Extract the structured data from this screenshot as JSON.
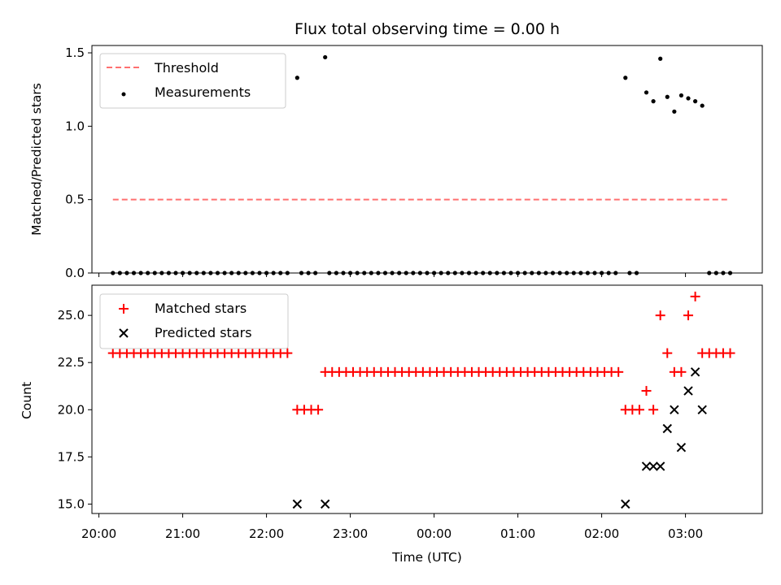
{
  "chart_data": [
    {
      "type": "scatter",
      "title": "Flux total observing time = 0.00 h",
      "xlabel": "",
      "ylabel": "Matched/Predicted stars",
      "ylim": [
        0,
        1.55
      ],
      "yticks": [
        0.0,
        0.5,
        1.0,
        1.5
      ],
      "ytick_labels": [
        "0.0",
        "0.5",
        "1.0",
        "1.5"
      ],
      "xlim": [
        "19:55",
        "03:55"
      ],
      "x_unit": "time (UTC)",
      "grid": false,
      "legend_position": "upper-left",
      "threshold": {
        "name": "Threshold",
        "value": 0.5,
        "x_start": "20:10",
        "x_end": "03:32",
        "color": "#ff7070",
        "style": "dashed"
      },
      "series": [
        {
          "name": "Measurements",
          "color": "#000000",
          "marker": "dot",
          "points": [
            [
              "20:10",
              0
            ],
            [
              "20:15",
              0
            ],
            [
              "20:20",
              0
            ],
            [
              "20:25",
              0
            ],
            [
              "20:30",
              0
            ],
            [
              "20:35",
              0
            ],
            [
              "20:40",
              0
            ],
            [
              "20:45",
              0
            ],
            [
              "20:50",
              0
            ],
            [
              "20:55",
              0
            ],
            [
              "21:00",
              0
            ],
            [
              "21:05",
              0
            ],
            [
              "21:10",
              0
            ],
            [
              "21:15",
              0
            ],
            [
              "21:20",
              0
            ],
            [
              "21:25",
              0
            ],
            [
              "21:30",
              0
            ],
            [
              "21:35",
              0
            ],
            [
              "21:40",
              0
            ],
            [
              "21:45",
              0
            ],
            [
              "21:50",
              0
            ],
            [
              "21:55",
              0
            ],
            [
              "22:00",
              0
            ],
            [
              "22:05",
              0
            ],
            [
              "22:10",
              0
            ],
            [
              "22:15",
              0
            ],
            [
              "22:22",
              1.33
            ],
            [
              "22:25",
              0
            ],
            [
              "22:30",
              0
            ],
            [
              "22:35",
              0
            ],
            [
              "22:42",
              1.47
            ],
            [
              "22:45",
              0
            ],
            [
              "22:50",
              0
            ],
            [
              "22:55",
              0
            ],
            [
              "23:00",
              0
            ],
            [
              "23:05",
              0
            ],
            [
              "23:10",
              0
            ],
            [
              "23:15",
              0
            ],
            [
              "23:20",
              0
            ],
            [
              "23:25",
              0
            ],
            [
              "23:30",
              0
            ],
            [
              "23:35",
              0
            ],
            [
              "23:40",
              0
            ],
            [
              "23:45",
              0
            ],
            [
              "23:50",
              0
            ],
            [
              "23:55",
              0
            ],
            [
              "00:00",
              0
            ],
            [
              "00:05",
              0
            ],
            [
              "00:10",
              0
            ],
            [
              "00:15",
              0
            ],
            [
              "00:20",
              0
            ],
            [
              "00:25",
              0
            ],
            [
              "00:30",
              0
            ],
            [
              "00:35",
              0
            ],
            [
              "00:40",
              0
            ],
            [
              "00:45",
              0
            ],
            [
              "00:50",
              0
            ],
            [
              "00:55",
              0
            ],
            [
              "01:00",
              0
            ],
            [
              "01:05",
              0
            ],
            [
              "01:10",
              0
            ],
            [
              "01:15",
              0
            ],
            [
              "01:20",
              0
            ],
            [
              "01:25",
              0
            ],
            [
              "01:30",
              0
            ],
            [
              "01:35",
              0
            ],
            [
              "01:40",
              0
            ],
            [
              "01:45",
              0
            ],
            [
              "01:50",
              0
            ],
            [
              "01:55",
              0
            ],
            [
              "02:00",
              0
            ],
            [
              "02:05",
              0
            ],
            [
              "02:10",
              0
            ],
            [
              "02:17",
              1.33
            ],
            [
              "02:20",
              0
            ],
            [
              "02:25",
              0
            ],
            [
              "02:32",
              1.23
            ],
            [
              "02:37",
              1.17
            ],
            [
              "02:42",
              1.46
            ],
            [
              "02:47",
              1.2
            ],
            [
              "02:52",
              1.1
            ],
            [
              "02:57",
              1.21
            ],
            [
              "03:02",
              1.19
            ],
            [
              "03:07",
              1.17
            ],
            [
              "03:12",
              1.14
            ],
            [
              "03:17",
              0
            ],
            [
              "03:22",
              0
            ],
            [
              "03:27",
              0
            ],
            [
              "03:32",
              0
            ]
          ]
        }
      ]
    },
    {
      "type": "scatter",
      "xlabel": "Time (UTC)",
      "ylabel": "Count",
      "ylim": [
        14.5,
        26.6
      ],
      "yticks": [
        15.0,
        17.5,
        20.0,
        22.5,
        25.0
      ],
      "ytick_labels": [
        "15.0",
        "17.5",
        "20.0",
        "22.5",
        "25.0"
      ],
      "xlim": [
        "19:55",
        "03:55"
      ],
      "xticks": [
        "20:00",
        "21:00",
        "22:00",
        "23:00",
        "00:00",
        "01:00",
        "02:00",
        "03:00"
      ],
      "xtick_labels": [
        "20:00",
        "21:00",
        "22:00",
        "23:00",
        "00:00",
        "01:00",
        "02:00",
        "03:00"
      ],
      "grid": false,
      "legend_position": "upper-left",
      "series": [
        {
          "name": "Matched stars",
          "color": "#ff0000",
          "marker": "plus",
          "points": [
            [
              "20:10",
              23
            ],
            [
              "20:15",
              23
            ],
            [
              "20:20",
              23
            ],
            [
              "20:25",
              23
            ],
            [
              "20:30",
              23
            ],
            [
              "20:35",
              23
            ],
            [
              "20:40",
              23
            ],
            [
              "20:45",
              23
            ],
            [
              "20:50",
              23
            ],
            [
              "20:55",
              23
            ],
            [
              "21:00",
              23
            ],
            [
              "21:05",
              23
            ],
            [
              "21:10",
              23
            ],
            [
              "21:15",
              23
            ],
            [
              "21:20",
              23
            ],
            [
              "21:25",
              23
            ],
            [
              "21:30",
              23
            ],
            [
              "21:35",
              23
            ],
            [
              "21:40",
              23
            ],
            [
              "21:45",
              23
            ],
            [
              "21:50",
              23
            ],
            [
              "21:55",
              23
            ],
            [
              "22:00",
              23
            ],
            [
              "22:05",
              23
            ],
            [
              "22:10",
              23
            ],
            [
              "22:15",
              23
            ],
            [
              "22:22",
              20
            ],
            [
              "22:27",
              20
            ],
            [
              "22:32",
              20
            ],
            [
              "22:37",
              20
            ],
            [
              "22:42",
              22
            ],
            [
              "22:47",
              22
            ],
            [
              "22:52",
              22
            ],
            [
              "22:57",
              22
            ],
            [
              "23:02",
              22
            ],
            [
              "23:07",
              22
            ],
            [
              "23:12",
              22
            ],
            [
              "23:17",
              22
            ],
            [
              "23:22",
              22
            ],
            [
              "23:27",
              22
            ],
            [
              "23:32",
              22
            ],
            [
              "23:37",
              22
            ],
            [
              "23:42",
              22
            ],
            [
              "23:47",
              22
            ],
            [
              "23:52",
              22
            ],
            [
              "23:57",
              22
            ],
            [
              "00:02",
              22
            ],
            [
              "00:07",
              22
            ],
            [
              "00:12",
              22
            ],
            [
              "00:17",
              22
            ],
            [
              "00:22",
              22
            ],
            [
              "00:27",
              22
            ],
            [
              "00:32",
              22
            ],
            [
              "00:37",
              22
            ],
            [
              "00:42",
              22
            ],
            [
              "00:47",
              22
            ],
            [
              "00:52",
              22
            ],
            [
              "00:57",
              22
            ],
            [
              "01:02",
              22
            ],
            [
              "01:07",
              22
            ],
            [
              "01:12",
              22
            ],
            [
              "01:17",
              22
            ],
            [
              "01:22",
              22
            ],
            [
              "01:27",
              22
            ],
            [
              "01:32",
              22
            ],
            [
              "01:37",
              22
            ],
            [
              "01:42",
              22
            ],
            [
              "01:47",
              22
            ],
            [
              "01:52",
              22
            ],
            [
              "01:57",
              22
            ],
            [
              "02:02",
              22
            ],
            [
              "02:07",
              22
            ],
            [
              "02:12",
              22
            ],
            [
              "02:17",
              20
            ],
            [
              "02:22",
              20
            ],
            [
              "02:27",
              20
            ],
            [
              "02:32",
              21
            ],
            [
              "02:37",
              20
            ],
            [
              "02:42",
              25
            ],
            [
              "02:47",
              23
            ],
            [
              "02:52",
              22
            ],
            [
              "02:57",
              22
            ],
            [
              "03:02",
              25
            ],
            [
              "03:07",
              26
            ],
            [
              "03:12",
              23
            ],
            [
              "03:17",
              23
            ],
            [
              "03:22",
              23
            ],
            [
              "03:27",
              23
            ],
            [
              "03:32",
              23
            ]
          ]
        },
        {
          "name": "Predicted stars",
          "color": "#000000",
          "marker": "x",
          "points": [
            [
              "22:22",
              15
            ],
            [
              "22:42",
              15
            ],
            [
              "02:17",
              15
            ],
            [
              "02:32",
              17
            ],
            [
              "02:37",
              17
            ],
            [
              "02:42",
              17
            ],
            [
              "02:47",
              19
            ],
            [
              "02:52",
              20
            ],
            [
              "02:57",
              18
            ],
            [
              "03:02",
              21
            ],
            [
              "03:07",
              22
            ],
            [
              "03:12",
              20
            ]
          ]
        }
      ]
    }
  ]
}
